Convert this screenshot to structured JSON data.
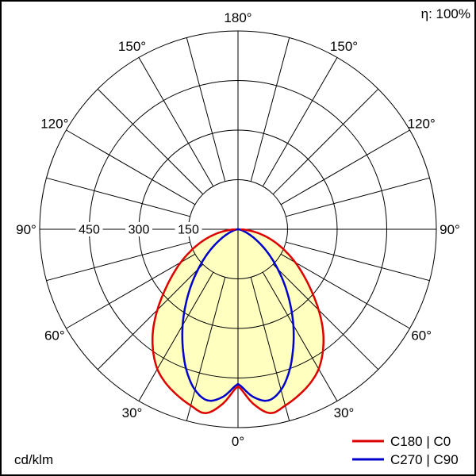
{
  "header": {
    "efficiency": "η: 100%"
  },
  "footer": {
    "unit": "cd/klm"
  },
  "legend": {
    "items": [
      {
        "label": "C180 | C0",
        "color": "#dd0000"
      },
      {
        "label": "C270 | C90",
        "color": "#0000cc"
      }
    ]
  },
  "chart_data": {
    "type": "polar",
    "subtype": "luminous-intensity-distribution",
    "unit": "cd/klm",
    "efficiency_percent": 100,
    "center": {
      "x": 300,
      "y": 289
    },
    "outer_radius_px": 250,
    "label_radius_px": 267,
    "fill_color": "#ffffc0",
    "radial_axis": {
      "max": 600,
      "tick_labels": [
        {
          "text": "450",
          "value": 450
        },
        {
          "text": "300",
          "value": 300
        },
        {
          "text": "150",
          "value": 150
        }
      ]
    },
    "grid": {
      "ring_values": [
        150,
        300,
        450,
        600
      ],
      "ray_step_deg": 15,
      "ray_inner_value": 150
    },
    "angle_labels": [
      {
        "text": "0°",
        "gamma": 0
      },
      {
        "text": "30°",
        "gamma": 30
      },
      {
        "text": "30°",
        "gamma": -30
      },
      {
        "text": "60°",
        "gamma": 60
      },
      {
        "text": "60°",
        "gamma": -60
      },
      {
        "text": "90°",
        "gamma": 90
      },
      {
        "text": "90°",
        "gamma": -90
      },
      {
        "text": "120°",
        "gamma": 120
      },
      {
        "text": "120°",
        "gamma": -120
      },
      {
        "text": "150°",
        "gamma": 150
      },
      {
        "text": "150°",
        "gamma": -150
      },
      {
        "text": "180°",
        "gamma": 180
      }
    ],
    "gamma_deg": [
      0,
      5,
      10,
      15,
      20,
      25,
      30,
      35,
      40,
      45,
      50,
      55,
      60,
      65,
      70,
      75,
      80,
      85,
      90
    ],
    "series": [
      {
        "name": "C180 | C0",
        "color": "#dd0000",
        "symmetric": true,
        "values": [
          475,
          530,
          565,
          552,
          535,
          515,
          488,
          448,
          400,
          345,
          290,
          242,
          200,
          160,
          124,
          90,
          58,
          28,
          8
        ]
      },
      {
        "name": "C270 | C90",
        "color": "#0000cc",
        "symmetric": true,
        "values": [
          468,
          508,
          526,
          503,
          455,
          395,
          335,
          275,
          220,
          170,
          128,
          92,
          62,
          40,
          24,
          13,
          6,
          2,
          0
        ]
      }
    ]
  }
}
